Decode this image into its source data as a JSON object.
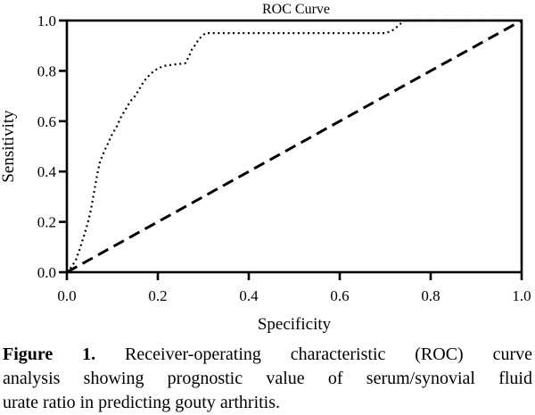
{
  "page": {
    "background": "#ffffff",
    "text_color": "#000000"
  },
  "chart_data": {
    "type": "line",
    "title": "ROC Curve",
    "xlabel": "Specificity",
    "ylabel": "Sensitivity",
    "xlim": [
      0.0,
      1.0
    ],
    "ylim": [
      0.0,
      1.0
    ],
    "x_ticks": [
      0.0,
      0.2,
      0.4,
      0.6,
      0.8,
      1.0
    ],
    "y_ticks": [
      0.0,
      0.2,
      0.4,
      0.6,
      0.8,
      1.0
    ],
    "x_tick_labels": [
      "0.0",
      "0.2",
      "0.4",
      "0.6",
      "0.8",
      "1.0"
    ],
    "y_tick_labels": [
      "0.0",
      "0.2",
      "0.4",
      "0.6",
      "0.8",
      "1.0"
    ],
    "grid": false,
    "legend": "none",
    "frame": "box",
    "background": "#ffffff",
    "axis_color": "#000000",
    "series": [
      {
        "name": "ROC curve (dotted)",
        "style": "dotted",
        "color": "#000000",
        "points": [
          [
            0.0,
            0.0
          ],
          [
            0.01,
            0.02
          ],
          [
            0.02,
            0.05
          ],
          [
            0.028,
            0.09
          ],
          [
            0.035,
            0.13
          ],
          [
            0.042,
            0.17
          ],
          [
            0.048,
            0.21
          ],
          [
            0.053,
            0.25
          ],
          [
            0.058,
            0.3
          ],
          [
            0.063,
            0.35
          ],
          [
            0.068,
            0.4
          ],
          [
            0.073,
            0.44
          ],
          [
            0.082,
            0.48
          ],
          [
            0.09,
            0.51
          ],
          [
            0.1,
            0.55
          ],
          [
            0.11,
            0.58
          ],
          [
            0.12,
            0.62
          ],
          [
            0.13,
            0.65
          ],
          [
            0.14,
            0.68
          ],
          [
            0.15,
            0.7
          ],
          [
            0.16,
            0.73
          ],
          [
            0.17,
            0.76
          ],
          [
            0.185,
            0.79
          ],
          [
            0.2,
            0.81
          ],
          [
            0.215,
            0.82
          ],
          [
            0.235,
            0.825
          ],
          [
            0.26,
            0.83
          ],
          [
            0.268,
            0.855
          ],
          [
            0.275,
            0.885
          ],
          [
            0.283,
            0.905
          ],
          [
            0.29,
            0.925
          ],
          [
            0.298,
            0.94
          ],
          [
            0.305,
            0.95
          ],
          [
            0.7,
            0.95
          ],
          [
            0.714,
            0.958
          ],
          [
            0.724,
            0.972
          ],
          [
            0.733,
            0.986
          ],
          [
            0.742,
            1.0
          ],
          [
            1.0,
            1.0
          ]
        ]
      },
      {
        "name": "Reference diagonal (dashed)",
        "style": "dashed",
        "color": "#000000",
        "points": [
          [
            0.0,
            0.0
          ],
          [
            1.0,
            1.0
          ]
        ]
      }
    ]
  },
  "caption": {
    "lines": [
      {
        "bold": "Figure 1.",
        "text": " Receiver-operating characteristic (ROC) curve"
      },
      {
        "bold": "",
        "text": "analysis showing prognostic value of serum/synovial fluid"
      },
      {
        "bold": "",
        "text": "urate ratio in predicting gouty arthritis."
      }
    ],
    "full_text": "Figure 1. Receiver-operating characteristic (ROC) curve analysis showing prognostic value of serum/synovial fluid urate ratio in predicting gouty arthritis."
  }
}
